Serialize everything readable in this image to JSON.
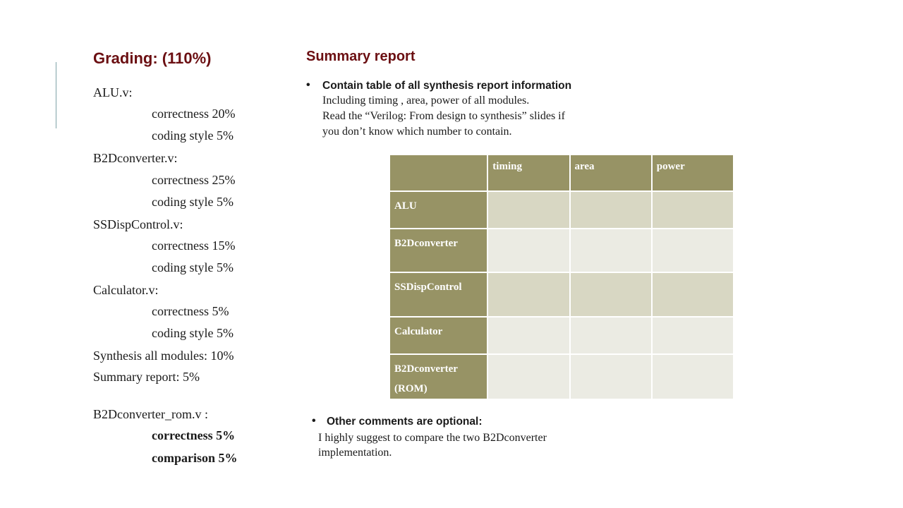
{
  "grading": {
    "title": "Grading: (110%)",
    "lines": [
      {
        "text": "ALU.v:"
      },
      {
        "text": "correctness 20%"
      },
      {
        "text": "coding style 5%"
      },
      {
        "text": "B2Dconverter.v:"
      },
      {
        "text": "correctness 25%"
      },
      {
        "text": "coding style 5%"
      },
      {
        "text": "SSDispControl.v:"
      },
      {
        "text": "correctness 15%"
      },
      {
        "text": "coding style 5%"
      },
      {
        "text": "Calculator.v:"
      },
      {
        "text": "correctness 5%"
      },
      {
        "text": "coding style 5%"
      },
      {
        "text": "Synthesis all modules:  10%"
      },
      {
        "text": "Summary report: 5%"
      },
      {
        "text": "B2Dconverter_rom.v :"
      },
      {
        "text": "correctness 5%"
      },
      {
        "text": "comparison 5%"
      }
    ]
  },
  "summary": {
    "title": "Summary report",
    "bullet1": {
      "heading": "Contain table of all synthesis report information",
      "lines": [
        "Including timing , area, power of all modules.",
        "Read the “Verilog: From design to synthesis” slides if",
        "you don’t know which number to contain."
      ]
    },
    "table": {
      "columns": [
        "",
        "timing",
        "area",
        "power"
      ],
      "rows": [
        {
          "label": "ALU"
        },
        {
          "label": "B2Dconverter"
        },
        {
          "label": "SSDispControl"
        },
        {
          "label": "Calculator"
        },
        {
          "label": "B2Dconverter\n(ROM)"
        }
      ]
    },
    "bullet2": {
      "heading": "Other comments are optional:",
      "lines": [
        "I highly suggest to compare the two B2Dconverter",
        "implementation."
      ]
    },
    "bullet_symbol": "•",
    "colors": {
      "heading": "#6b0f12",
      "table_header": "#979365",
      "table_band": "#d8d7c3",
      "table_light": "#ebebe3"
    }
  }
}
